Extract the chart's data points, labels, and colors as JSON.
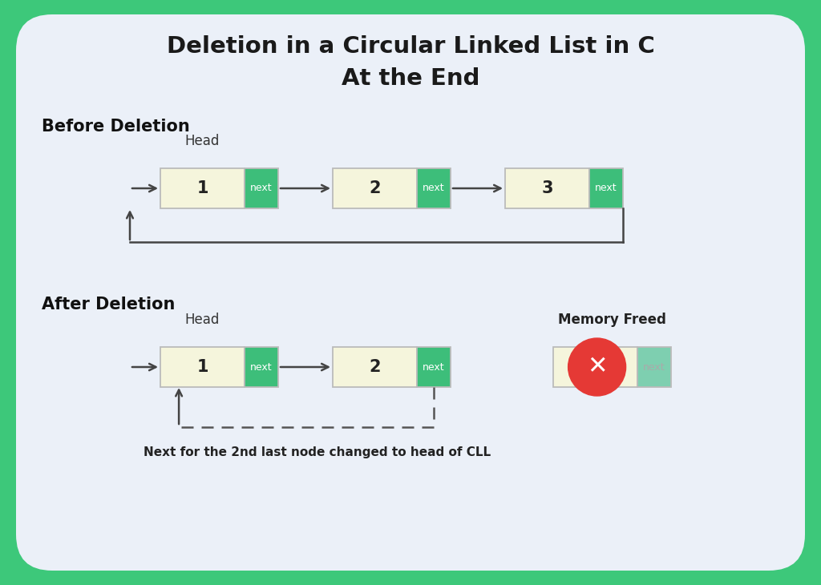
{
  "title_line1": "Deletion in a Circular Linked List in C",
  "title_line2": "At the End",
  "bg_outer": "#3DC87A",
  "bg_inner": "#EBF0F8",
  "node_fill": "#F5F5DC",
  "node_border": "#BBBBBB",
  "next_fill": "#3DBE7A",
  "next_border": "#3DBE7A",
  "next_text_color": "#FFFFFF",
  "node_text_color": "#222222",
  "title_color": "#1A1A1A",
  "section_label_color": "#111111",
  "arrow_color": "#444444",
  "dashed_arrow_color": "#555555",
  "memory_freed_label": "Memory Freed",
  "memory_freed_next_fill": "#7ECFB0",
  "cross_fill": "#E53935",
  "annotation_text": "Next for the 2nd last node changed to head of CLL",
  "before_label": "Before Deletion",
  "after_label": "After Deletion",
  "head_label": "Head",
  "NW": 1.05,
  "NXW": 0.42,
  "NH": 0.5
}
